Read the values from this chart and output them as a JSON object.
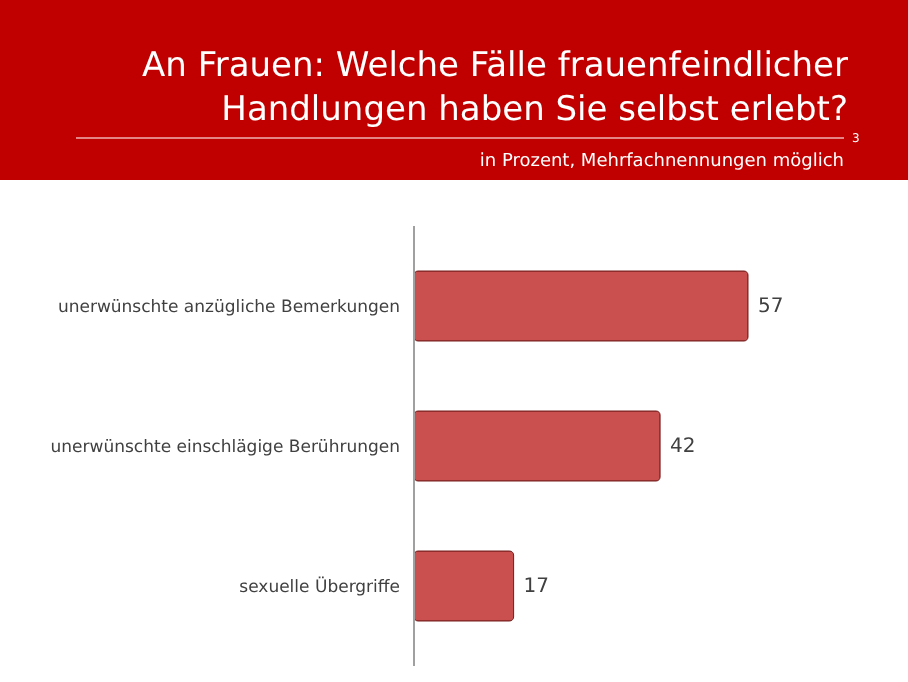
{
  "chart_data": {
    "type": "bar",
    "orientation": "horizontal",
    "title": "An Frauen: Welche Fälle frauenfeindlicher Handlungen haben Sie selbst erlebt?",
    "subtitle": "in Prozent, Mehrfachnennungen möglich",
    "annotations": [
      "3"
    ],
    "categories": [
      "unerwünschte anzügliche Bemerkungen",
      "unerwünschte einschlägige Berührungen",
      "sexuelle Übergriffe"
    ],
    "values": [
      57,
      42,
      17
    ],
    "color": "#c9504e",
    "data_labels": true
  }
}
